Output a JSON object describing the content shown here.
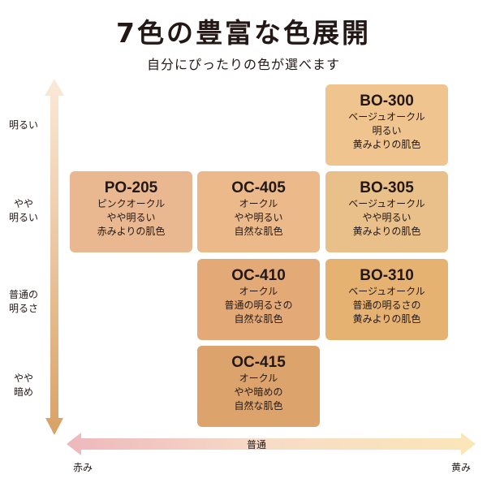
{
  "header": {
    "title": "7色の豊富な色展開",
    "subtitle": "自分にぴったりの色が選べます"
  },
  "y_axis": {
    "labels": [
      [
        "明るい"
      ],
      [
        "やや",
        "明るい"
      ],
      [
        "普通の",
        "明るさ"
      ],
      [
        "やや",
        "暗め"
      ]
    ]
  },
  "x_axis": {
    "left": "赤み",
    "center": "普通",
    "right": "黄み"
  },
  "shades": [
    {
      "code": "BO-300",
      "lines": [
        "ベージュオークル",
        "明るい",
        "黄みよりの肌色"
      ],
      "color": "#f0c48e"
    },
    {
      "code": "PO-205",
      "lines": [
        "ピンクオークル",
        "やや明るい",
        "赤みよりの肌色"
      ],
      "color": "#e9b890"
    },
    {
      "code": "OC-405",
      "lines": [
        "オークル",
        "やや明るい",
        "自然な肌色"
      ],
      "color": "#ebb98a"
    },
    {
      "code": "BO-305",
      "lines": [
        "ベージュオークル",
        "やや明るい",
        "黄みよりの肌色"
      ],
      "color": "#e9c08a"
    },
    {
      "code": "OC-410",
      "lines": [
        "オークル",
        "普通の明るさの",
        "自然な肌色"
      ],
      "color": "#e3aa78"
    },
    {
      "code": "BO-310",
      "lines": [
        "ベージュオークル",
        "普通の明るさの",
        "黄みよりの肌色"
      ],
      "color": "#e6b272"
    },
    {
      "code": "OC-415",
      "lines": [
        "オークル",
        "やや暗めの",
        "自然な肌色"
      ],
      "color": "#dca46c"
    }
  ]
}
